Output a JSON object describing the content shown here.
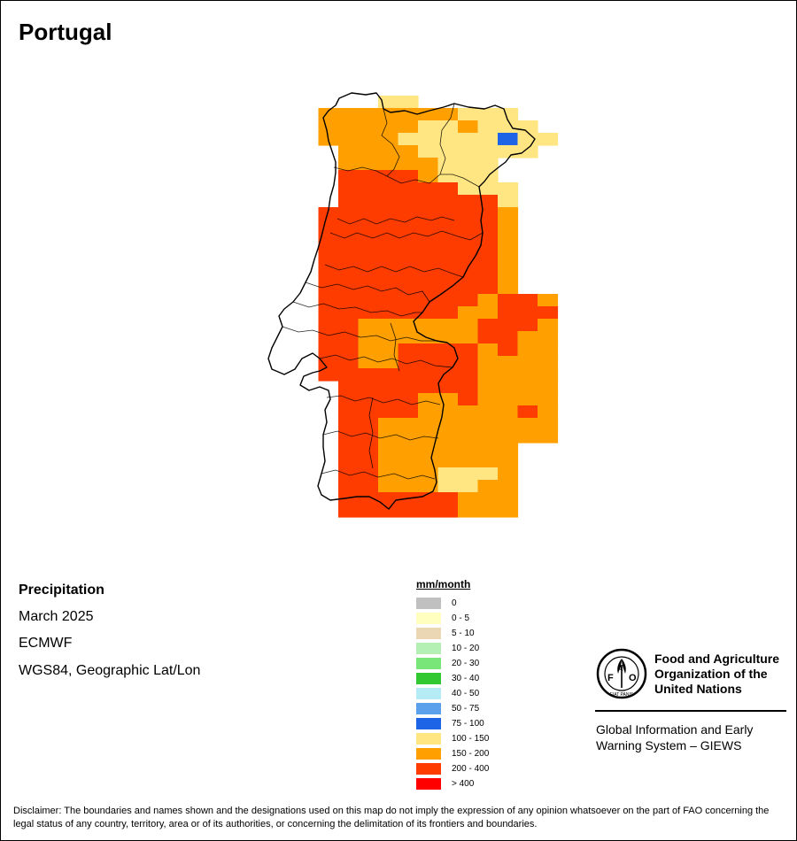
{
  "title": "Portugal",
  "metadata": {
    "variable": "Precipitation",
    "period": "March 2025",
    "source": "ECMWF",
    "projection": "WGS84, Geographic Lat/Lon"
  },
  "legend": {
    "title": "mm/month",
    "classes": [
      {
        "label": "0",
        "color": "#c0c0c0"
      },
      {
        "label": "0 - 5",
        "color": "#ffffc0"
      },
      {
        "label": "5 - 10",
        "color": "#ebd7b4"
      },
      {
        "label": "10 - 20",
        "color": "#b4f0b4"
      },
      {
        "label": "20 - 30",
        "color": "#78e678"
      },
      {
        "label": "30 - 40",
        "color": "#32c832"
      },
      {
        "label": "40 - 50",
        "color": "#b4ebf5"
      },
      {
        "label": "50 - 75",
        "color": "#5aa0eb"
      },
      {
        "label": "75 - 100",
        "color": "#1e64e6"
      },
      {
        "label": "100 - 150",
        "color": "#ffe682"
      },
      {
        "label": "150 - 200",
        "color": "#ffa000"
      },
      {
        "label": "200 - 400",
        "color": "#ff3c00"
      },
      {
        "label": "> 400",
        "color": "#ff0000"
      }
    ]
  },
  "fao": {
    "org_name": "Food and Agriculture Organization of the United Nations",
    "emblem_text": "FIAT PANIS",
    "giews_name": "Global Information and Early Warning System – GIEWS"
  },
  "disclaimer": "Disclaimer: The boundaries and names shown and the designations used on this map do not imply the expression of any opinion whatsoever on the part of FAO concerning the legal status of any country, territory, area or of its authorities, or concerning the delimitation of its frontiers and boundaries.",
  "grid_rows": [
    {
      "cells": [
        "",
        "",
        "",
        "",
        "4",
        "4",
        "",
        "",
        "",
        "",
        "",
        "",
        ""
      ]
    },
    {
      "cells": [
        "",
        "5",
        "5",
        "5",
        "5",
        "5",
        "5",
        "5",
        "4",
        "4",
        "4",
        "",
        ""
      ]
    },
    {
      "cells": [
        "",
        "5",
        "5",
        "5",
        "5",
        "5",
        "4",
        "4",
        "5",
        "4",
        "4",
        "4",
        ""
      ]
    },
    {
      "cells": [
        "",
        "5",
        "5",
        "5",
        "5",
        "4",
        "4",
        "4",
        "4",
        "4",
        "3",
        "4",
        "4"
      ]
    },
    {
      "cells": [
        "",
        "",
        "5",
        "5",
        "5",
        "5",
        "4",
        "4",
        "4",
        "4",
        "4",
        "4",
        ""
      ]
    },
    {
      "cells": [
        "",
        "",
        "5",
        "5",
        "5",
        "5",
        "5",
        "4",
        "4",
        "4",
        "",
        "",
        ""
      ]
    },
    {
      "cells": [
        "",
        "",
        "6",
        "6",
        "6",
        "6",
        "5",
        "4",
        "4",
        "4",
        "",
        "",
        ""
      ]
    },
    {
      "cells": [
        "",
        "",
        "6",
        "6",
        "6",
        "6",
        "6",
        "6",
        "4",
        "4",
        "4",
        "",
        ""
      ]
    },
    {
      "cells": [
        "",
        "",
        "6",
        "6",
        "6",
        "6",
        "6",
        "6",
        "6",
        "6",
        "4",
        "",
        ""
      ]
    },
    {
      "cells": [
        "",
        "6",
        "6",
        "6",
        "6",
        "6",
        "6",
        "6",
        "6",
        "6",
        "5",
        "",
        ""
      ]
    },
    {
      "cells": [
        "",
        "6",
        "6",
        "6",
        "6",
        "6",
        "6",
        "6",
        "6",
        "6",
        "5",
        "",
        ""
      ]
    },
    {
      "cells": [
        "",
        "6",
        "6",
        "6",
        "6",
        "6",
        "6",
        "6",
        "6",
        "6",
        "5",
        "",
        ""
      ]
    },
    {
      "cells": [
        "",
        "6",
        "6",
        "6",
        "6",
        "6",
        "6",
        "6",
        "6",
        "6",
        "5",
        "",
        ""
      ]
    },
    {
      "cells": [
        "",
        "6",
        "6",
        "6",
        "6",
        "6",
        "6",
        "6",
        "6",
        "6",
        "5",
        "",
        ""
      ]
    },
    {
      "cells": [
        "",
        "6",
        "6",
        "6",
        "6",
        "6",
        "6",
        "6",
        "6",
        "6",
        "5",
        "",
        ""
      ]
    },
    {
      "cells": [
        "",
        "6",
        "6",
        "6",
        "6",
        "6",
        "6",
        "6",
        "6",
        "6",
        "5",
        "",
        ""
      ]
    },
    {
      "cells": [
        "",
        "6",
        "6",
        "6",
        "6",
        "6",
        "6",
        "6",
        "6",
        "5",
        "6",
        "6",
        "5"
      ]
    },
    {
      "cells": [
        "",
        "6",
        "6",
        "6",
        "6",
        "6",
        "6",
        "6",
        "5",
        "5",
        "6",
        "6",
        "6"
      ]
    },
    {
      "cells": [
        "",
        "6",
        "6",
        "5",
        "5",
        "5",
        "5",
        "5",
        "5",
        "6",
        "6",
        "6",
        "5"
      ]
    },
    {
      "cells": [
        "",
        "6",
        "6",
        "5",
        "5",
        "5",
        "5",
        "5",
        "5",
        "6",
        "6",
        "5",
        "5"
      ]
    },
    {
      "cells": [
        "",
        "6",
        "6",
        "5",
        "5",
        "6",
        "6",
        "6",
        "6",
        "5",
        "6",
        "5",
        "5"
      ]
    },
    {
      "cells": [
        "",
        "6",
        "6",
        "5",
        "5",
        "6",
        "6",
        "6",
        "6",
        "5",
        "5",
        "5",
        "5"
      ]
    },
    {
      "cells": [
        "",
        "6",
        "6",
        "6",
        "6",
        "6",
        "6",
        "6",
        "6",
        "5",
        "5",
        "5",
        "5"
      ]
    },
    {
      "cells": [
        "",
        "",
        "6",
        "6",
        "6",
        "6",
        "6",
        "6",
        "6",
        "5",
        "5",
        "5",
        "5"
      ]
    },
    {
      "cells": [
        "",
        "",
        "6",
        "6",
        "6",
        "6",
        "5",
        "5",
        "6",
        "5",
        "5",
        "5",
        "5"
      ]
    },
    {
      "cells": [
        "",
        "",
        "6",
        "6",
        "6",
        "6",
        "5",
        "5",
        "5",
        "5",
        "5",
        "6",
        "5"
      ]
    },
    {
      "cells": [
        "",
        "",
        "6",
        "6",
        "5",
        "5",
        "5",
        "5",
        "5",
        "5",
        "5",
        "5",
        "5"
      ]
    },
    {
      "cells": [
        "",
        "",
        "6",
        "6",
        "5",
        "5",
        "5",
        "5",
        "5",
        "5",
        "5",
        "5",
        "5"
      ]
    },
    {
      "cells": [
        "",
        "",
        "6",
        "6",
        "5",
        "5",
        "5",
        "5",
        "5",
        "5",
        "5",
        "",
        ""
      ]
    },
    {
      "cells": [
        "",
        "",
        "6",
        "6",
        "5",
        "5",
        "5",
        "5",
        "5",
        "5",
        "5",
        "",
        ""
      ]
    },
    {
      "cells": [
        "",
        "",
        "6",
        "6",
        "5",
        "5",
        "5",
        "4",
        "4",
        "4",
        "5",
        "",
        ""
      ]
    },
    {
      "cells": [
        "",
        "",
        "6",
        "6",
        "5",
        "5",
        "5",
        "4",
        "4",
        "5",
        "5",
        "",
        ""
      ]
    },
    {
      "cells": [
        "",
        "",
        "6",
        "6",
        "6",
        "6",
        "6",
        "6",
        "5",
        "5",
        "5",
        "",
        ""
      ]
    },
    {
      "cells": [
        "",
        "",
        "6",
        "6",
        "6",
        "6",
        "6",
        "6",
        "5",
        "5",
        "5",
        "",
        ""
      ]
    }
  ],
  "grid_symbols": {
    "3": "#1e64e6",
    "4": "#ffe682",
    "5": "#ffa000",
    "6": "#ff3c00"
  }
}
